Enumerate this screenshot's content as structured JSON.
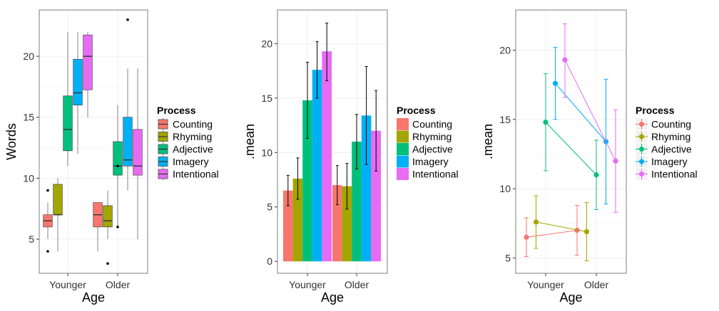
{
  "colors": {
    "Counting": "#f8766d",
    "Rhyming": "#a3a500",
    "Adjective": "#00bf7d",
    "Imagery": "#00b0f6",
    "Intentional": "#e76bf3"
  },
  "legend": {
    "title": "Process",
    "items": [
      "Counting",
      "Rhyming",
      "Adjective",
      "Imagery",
      "Intentional"
    ]
  },
  "chart_data": [
    {
      "type": "box",
      "xlabel": "Age",
      "ylabel": "Words",
      "categories": [
        "Younger",
        "Older"
      ],
      "ylim": [
        2.2,
        23.8
      ],
      "yticks": [
        5,
        10,
        15,
        20
      ],
      "grid": true,
      "legend_position": "right",
      "series": [
        {
          "name": "Counting",
          "boxes": [
            {
              "min": 5,
              "q1": 6,
              "median": 6.5,
              "q3": 7,
              "max": 8,
              "outliers": [
                4,
                9
              ]
            },
            {
              "min": 4,
              "q1": 6,
              "median": 7,
              "q3": 8,
              "max": 8,
              "outliers": []
            }
          ]
        },
        {
          "name": "Rhyming",
          "boxes": [
            {
              "min": 4,
              "q1": 7,
              "median": 7,
              "q3": 9.5,
              "max": 10,
              "outliers": []
            },
            {
              "min": 5,
              "q1": 6,
              "median": 6.5,
              "q3": 7.75,
              "max": 9,
              "outliers": [
                3
              ]
            }
          ]
        },
        {
          "name": "Adjective",
          "boxes": [
            {
              "min": 11,
              "q1": 12.25,
              "median": 14,
              "q3": 16.75,
              "max": 22,
              "outliers": []
            },
            {
              "min": 6,
              "q1": 10.25,
              "median": 11,
              "q3": 13,
              "max": 16,
              "outliers": [
                6,
                11
              ]
            }
          ]
        },
        {
          "name": "Imagery",
          "boxes": [
            {
              "min": 12,
              "q1": 16,
              "median": 17,
              "q3": 19.75,
              "max": 22,
              "outliers": []
            },
            {
              "min": 9,
              "q1": 11,
              "median": 11.5,
              "q3": 15,
              "max": 19,
              "outliers": [
                23
              ]
            }
          ]
        },
        {
          "name": "Intentional",
          "boxes": [
            {
              "min": 15,
              "q1": 17.25,
              "median": 20,
              "q3": 21.75,
              "max": 22,
              "outliers": []
            },
            {
              "min": 5,
              "q1": 10.25,
              "median": 11,
              "q3": 14,
              "max": 19,
              "outliers": []
            }
          ]
        }
      ]
    },
    {
      "type": "bar",
      "xlabel": "Age",
      "ylabel": ".mean",
      "categories": [
        "Younger",
        "Older"
      ],
      "ylim": [
        -1.1,
        23.1
      ],
      "yticks": [
        0,
        5,
        10,
        15,
        20
      ],
      "grid": true,
      "legend_position": "right",
      "series": [
        {
          "name": "Counting",
          "values": [
            6.5,
            7.0
          ],
          "lower": [
            5.1,
            5.2
          ],
          "upper": [
            7.9,
            8.8
          ]
        },
        {
          "name": "Rhyming",
          "values": [
            7.6,
            6.9
          ],
          "lower": [
            5.7,
            4.8
          ],
          "upper": [
            9.5,
            9.0
          ]
        },
        {
          "name": "Adjective",
          "values": [
            14.8,
            11.0
          ],
          "lower": [
            11.3,
            8.5
          ],
          "upper": [
            18.3,
            13.5
          ]
        },
        {
          "name": "Imagery",
          "values": [
            17.6,
            13.4
          ],
          "lower": [
            15.0,
            8.9
          ],
          "upper": [
            20.2,
            17.9
          ]
        },
        {
          "name": "Intentional",
          "values": [
            19.3,
            12.0
          ],
          "lower": [
            16.6,
            8.3
          ],
          "upper": [
            21.9,
            15.7
          ]
        }
      ]
    },
    {
      "type": "line",
      "xlabel": "Age",
      "ylabel": ".mean",
      "categories": [
        "Younger",
        "Older"
      ],
      "ylim": [
        3.9,
        22.9
      ],
      "yticks": [
        5,
        10,
        15,
        20
      ],
      "grid": true,
      "legend_position": "right",
      "series": [
        {
          "name": "Counting",
          "values": [
            6.5,
            7.0
          ],
          "lower": [
            5.1,
            5.2
          ],
          "upper": [
            7.9,
            8.8
          ]
        },
        {
          "name": "Rhyming",
          "values": [
            7.6,
            6.9
          ],
          "lower": [
            5.7,
            4.8
          ],
          "upper": [
            9.5,
            9.0
          ]
        },
        {
          "name": "Adjective",
          "values": [
            14.8,
            11.0
          ],
          "lower": [
            11.3,
            8.5
          ],
          "upper": [
            18.3,
            13.5
          ]
        },
        {
          "name": "Imagery",
          "values": [
            17.6,
            13.4
          ],
          "lower": [
            15.0,
            8.9
          ],
          "upper": [
            20.2,
            17.9
          ]
        },
        {
          "name": "Intentional",
          "values": [
            19.3,
            12.0
          ],
          "lower": [
            16.6,
            8.3
          ],
          "upper": [
            21.9,
            15.7
          ]
        }
      ]
    }
  ]
}
